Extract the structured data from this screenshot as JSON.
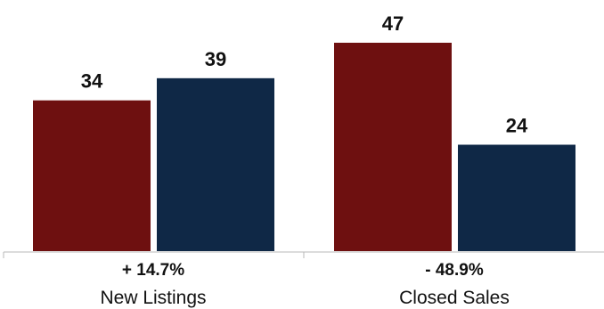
{
  "chart_data": {
    "type": "bar",
    "categories": [
      "New Listings",
      "Closed Sales"
    ],
    "change_labels": [
      "+ 14.7%",
      "- 48.9%"
    ],
    "series": [
      {
        "values": [
          34,
          47
        ],
        "color": "#6e1010"
      },
      {
        "values": [
          39,
          24
        ],
        "color": "#0f2846"
      }
    ],
    "ylim": [
      0,
      47
    ],
    "grid": false,
    "legend": "none"
  }
}
